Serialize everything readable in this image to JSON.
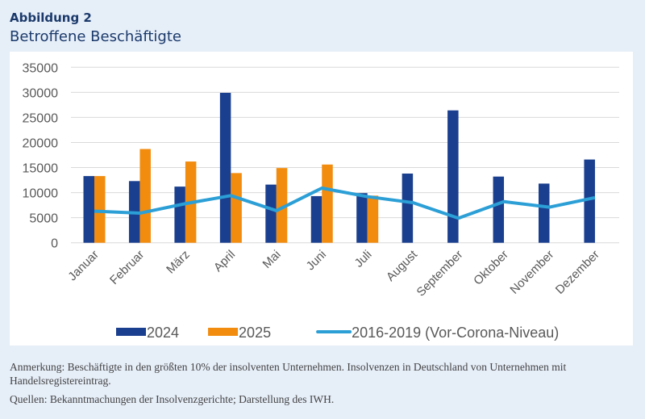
{
  "header": {
    "figure_label": "Abbildung 2",
    "title": "Betroffene Beschäftigte"
  },
  "chart_data": {
    "type": "bar",
    "title": "Betroffene Beschäftigte",
    "xlabel": "",
    "ylabel": "",
    "ylim": [
      0,
      35000
    ],
    "yticks": [
      "0",
      "5000",
      "10000",
      "15000",
      "20000",
      "25000",
      "30000",
      "35000"
    ],
    "grid": true,
    "legend_position": "bottom",
    "categories": [
      "Januar",
      "Februar",
      "März",
      "April",
      "Mai",
      "Juni",
      "Juli",
      "August",
      "September",
      "Oktober",
      "November",
      "Dezember"
    ],
    "series": [
      {
        "name": "2024",
        "type": "bar",
        "color": "#1a3f8f",
        "values": [
          13300,
          12300,
          11200,
          29900,
          11600,
          9300,
          9900,
          13800,
          26400,
          13200,
          11800,
          16600
        ]
      },
      {
        "name": "2025",
        "type": "bar",
        "color": "#f28c0f",
        "values": [
          13300,
          18700,
          16200,
          13900,
          14900,
          15600,
          9400,
          null,
          null,
          null,
          null,
          null
        ]
      },
      {
        "name": "2016-2019 (Vor-Corona-Niveau)",
        "type": "line",
        "color": "#2b9fd6",
        "values": [
          6300,
          5900,
          7800,
          9400,
          6400,
          10900,
          9200,
          8000,
          4900,
          8200,
          7100,
          9000
        ]
      }
    ]
  },
  "footer": {
    "note": "Anmerkung: Beschäftigte in den größten 10% der insolventen Unternehmen. Insolvenzen in Deutschland von Unternehmen mit Handelsregistereintrag.",
    "sources": "Quellen: Bekanntmachungen der Insolvenzgerichte; Darstellung des IWH."
  }
}
